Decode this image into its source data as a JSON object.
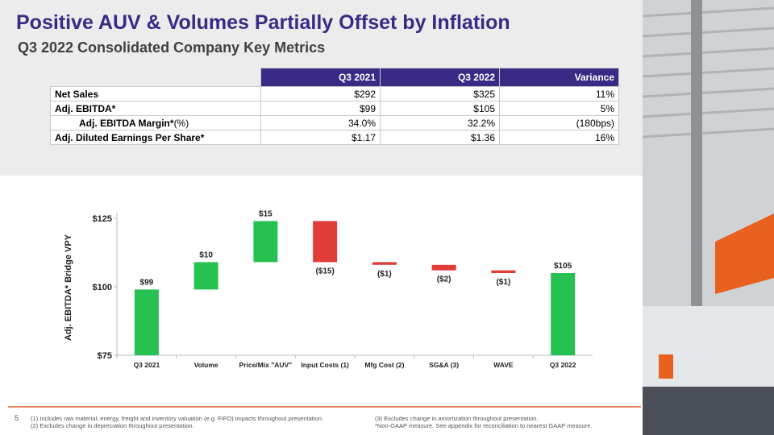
{
  "header": {
    "title": "Positive AUV & Volumes Partially Offset by Inflation",
    "subtitle": "Q3 2022 Consolidated Company Key Metrics"
  },
  "table": {
    "columns": [
      "Q3 2021",
      "Q3 2022",
      "Variance"
    ],
    "rows": [
      {
        "label": "Net Sales",
        "cells": [
          "$292",
          "$325",
          "11%"
        ]
      },
      {
        "label": "Adj. EBITDA*",
        "cells": [
          "$99",
          "$105",
          "5%"
        ]
      },
      {
        "label": "Adj. EBITDA Margin*",
        "label_suffix": "(%)",
        "cells": [
          "34.0%",
          "32.2%",
          "(180bps)"
        ]
      },
      {
        "label": "Adj. Diluted Earnings Per Share*",
        "cells": [
          "$1.17",
          "$1.36",
          "16%"
        ]
      }
    ]
  },
  "chart_data": {
    "type": "waterfall",
    "y_label": "Adj. EBITDA* Bridge VPY",
    "categories": [
      "Q3 2021",
      "Volume",
      "Price/Mix \"AUV\"",
      "Input Costs (1)",
      "Mfg Cost (2)",
      "SG&A (3)",
      "WAVE",
      "Q3 2022"
    ],
    "values": [
      99,
      10,
      15,
      -15,
      -1,
      -2,
      -1,
      105
    ],
    "value_labels": [
      "$99",
      "$10",
      "$15",
      "($15)",
      "($1)",
      "($2)",
      "($1)",
      "$105"
    ],
    "measures": [
      "total",
      "relative",
      "relative",
      "relative",
      "relative",
      "relative",
      "relative",
      "total"
    ],
    "increase_color": "#27c152",
    "decrease_color": "#e03c3a",
    "total_color": "#27c152",
    "ylim": [
      75,
      130
    ],
    "yticks": [
      {
        "value": 75,
        "label": "$75"
      },
      {
        "value": 100,
        "label": "$100"
      },
      {
        "value": 125,
        "label": "$125"
      }
    ]
  },
  "footer": {
    "page": "5",
    "notes_left": [
      "(1) Includes raw material, energy, freight and inventory valuation (e.g. FIFO) impacts throughout presentation.",
      "(2) Excludes change in depreciation throughout presentation."
    ],
    "notes_right": [
      "(3) Excludes change in amortization throughout presentation.",
      "*Non-GAAP measure. See appendix for reconciliation to nearest GAAP measure."
    ]
  }
}
